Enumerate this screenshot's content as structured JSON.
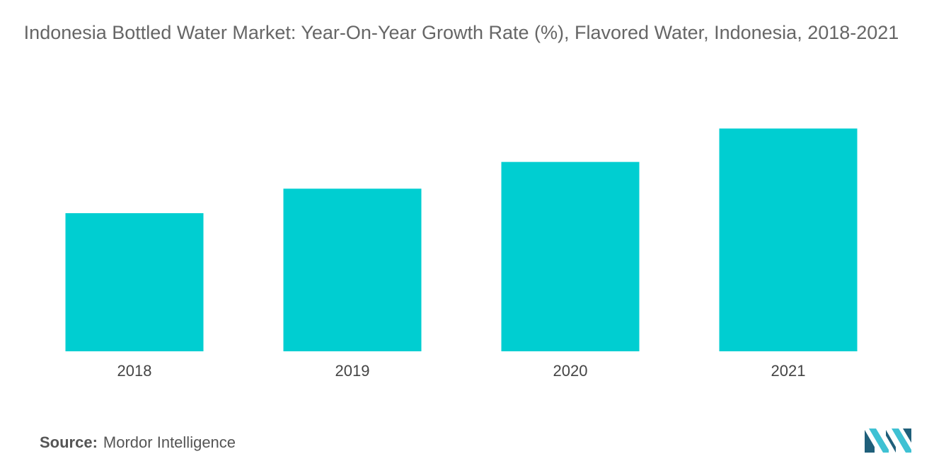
{
  "title": "Indonesia Bottled Water Market: Year-On-Year Growth Rate (%), Flavored Water, Indonesia, 2018-2021",
  "chart_data": {
    "type": "bar",
    "title": "Indonesia Bottled Water Market: Year-On-Year Growth Rate (%), Flavored Water, Indonesia, 2018-2021",
    "categories": [
      "2018",
      "2019",
      "2020",
      "2021"
    ],
    "values": [
      6.2,
      7.3,
      8.5,
      10.0
    ],
    "xlabel": "",
    "ylabel": "",
    "ylim": [
      0,
      11
    ],
    "grid": false,
    "color": "#00CED1"
  },
  "source": {
    "label": "Source:",
    "value": "Mordor Intelligence"
  },
  "colors": {
    "bar": "#00CED1",
    "logo_dark": "#1F5F7A",
    "logo_light": "#3FC1D3"
  }
}
